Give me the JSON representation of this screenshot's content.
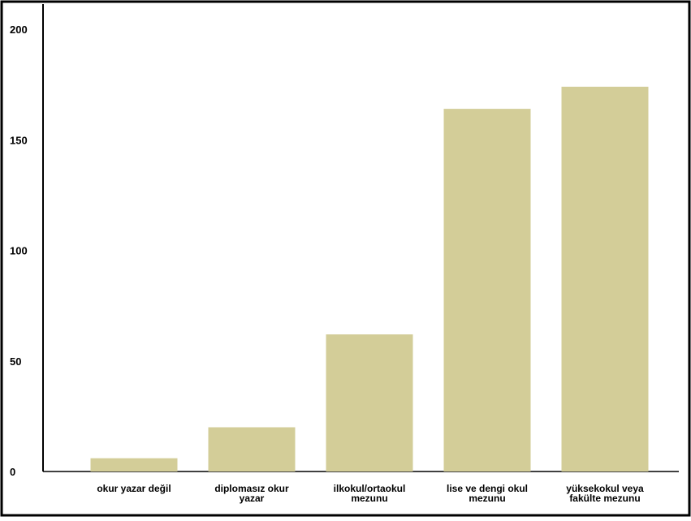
{
  "chart_data": {
    "type": "bar",
    "categories": [
      [
        "okur yazar değil"
      ],
      [
        "diplomasız okur",
        "yazar"
      ],
      [
        "ilkokul/ortaokul",
        "mezunu"
      ],
      [
        "lise ve dengi okul",
        "mezunu"
      ],
      [
        "yüksekokul veya",
        "fakülte mezunu"
      ]
    ],
    "values": [
      6,
      20,
      62,
      164,
      174
    ],
    "ylim": [
      0,
      200
    ],
    "yticks": [
      0,
      50,
      100,
      150,
      200
    ],
    "grid": false,
    "colors": {
      "bar": "#d3cd98",
      "frame": "#000000",
      "axis": "#000000",
      "text": "#000000"
    }
  }
}
